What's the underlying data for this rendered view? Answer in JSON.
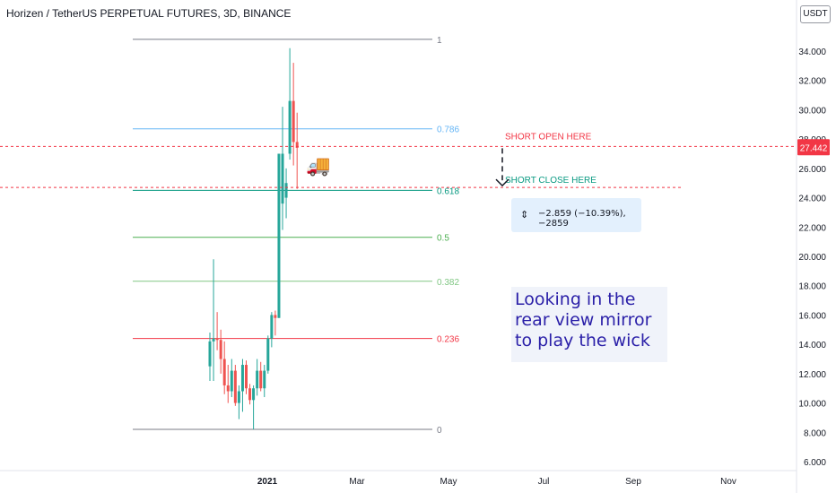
{
  "title": "Horizen / TetherUS PERPETUAL FUTURES, 3D, BINANCE",
  "currency_button": "USDT",
  "annotations": {
    "short_open": "SHORT OPEN HERE",
    "short_close": "SHORT CLOSE HERE",
    "measure": "−2.859 (−10.39%), −2859",
    "note_lines": [
      "Looking in the",
      "rear view mirror",
      "to play the wick"
    ],
    "truck_icon": "truck-icon"
  },
  "colors": {
    "up": "#26a69a",
    "down": "#ef5350",
    "note_text": "#2a1fa8",
    "price_badge": "#f23645"
  },
  "chart_data": {
    "type": "candlestick",
    "y_axis": {
      "min": 5.5,
      "max": 35.5,
      "ticks": [
        6,
        8,
        10,
        12,
        14,
        16,
        18,
        20,
        22,
        24,
        26,
        28,
        30,
        32,
        34
      ],
      "tick_labels": [
        "6.000",
        "8.000",
        "10.000",
        "12.000",
        "14.000",
        "16.000",
        "18.000",
        "20.000",
        "22.000",
        "24.000",
        "26.000",
        "28.000",
        "30.000",
        "32.000",
        "34.000"
      ]
    },
    "x_axis": {
      "labels": [
        "2021",
        "Mar",
        "May",
        "Jul",
        "Sep",
        "Nov"
      ]
    },
    "current_price": 27.442,
    "current_price_label": "27.442",
    "fib_levels": [
      {
        "label": "1",
        "price": 34.8,
        "color": "#787b86"
      },
      {
        "label": "0.786",
        "price": 28.7,
        "color": "#64b5f6"
      },
      {
        "label": "0.618",
        "price": 24.5,
        "color": "#089981"
      },
      {
        "label": "0.5",
        "price": 21.3,
        "color": "#4caf50"
      },
      {
        "label": "0.382",
        "price": 18.3,
        "color": "#81c784"
      },
      {
        "label": "0.236",
        "price": 14.4,
        "color": "#f23645"
      },
      {
        "label": "0",
        "price": 8.2,
        "color": "#787b86"
      }
    ],
    "short_open_price": 27.5,
    "short_close_price": 24.7,
    "candles": [
      {
        "o": 12.5,
        "h": 14.8,
        "l": 11.5,
        "c": 14.2
      },
      {
        "o": 14.2,
        "h": 19.8,
        "l": 11.5,
        "c": 14.4
      },
      {
        "o": 14.4,
        "h": 16.2,
        "l": 13.6,
        "c": 14.3
      },
      {
        "o": 14.3,
        "h": 15.0,
        "l": 12.0,
        "c": 13.0
      },
      {
        "o": 13.0,
        "h": 14.2,
        "l": 10.6,
        "c": 11.2
      },
      {
        "o": 11.2,
        "h": 12.6,
        "l": 10.0,
        "c": 10.8
      },
      {
        "o": 10.8,
        "h": 13.0,
        "l": 10.4,
        "c": 12.2
      },
      {
        "o": 12.2,
        "h": 12.6,
        "l": 9.8,
        "c": 10.0
      },
      {
        "o": 10.0,
        "h": 11.2,
        "l": 8.9,
        "c": 10.8
      },
      {
        "o": 10.8,
        "h": 13.0,
        "l": 9.4,
        "c": 12.6
      },
      {
        "o": 12.6,
        "h": 12.9,
        "l": 10.6,
        "c": 11.0
      },
      {
        "o": 11.0,
        "h": 11.3,
        "l": 9.9,
        "c": 10.2
      },
      {
        "o": 10.2,
        "h": 11.2,
        "l": 8.2,
        "c": 11.0
      },
      {
        "o": 11.0,
        "h": 13.0,
        "l": 10.5,
        "c": 12.2
      },
      {
        "o": 12.2,
        "h": 12.8,
        "l": 10.8,
        "c": 11.0
      },
      {
        "o": 11.0,
        "h": 12.6,
        "l": 10.4,
        "c": 12.2
      },
      {
        "o": 12.2,
        "h": 14.6,
        "l": 12.0,
        "c": 14.4
      },
      {
        "o": 14.4,
        "h": 16.2,
        "l": 13.8,
        "c": 16.0
      },
      {
        "o": 16.0,
        "h": 16.3,
        "l": 14.6,
        "c": 15.8
      },
      {
        "o": 15.8,
        "h": 27.0,
        "l": 15.8,
        "c": 27.0
      },
      {
        "o": 23.6,
        "h": 30.2,
        "l": 21.8,
        "c": 27.0
      },
      {
        "o": 24.0,
        "h": 26.0,
        "l": 22.6,
        "c": 25.0
      },
      {
        "o": 27.0,
        "h": 34.2,
        "l": 26.6,
        "c": 30.6
      },
      {
        "o": 30.6,
        "h": 33.2,
        "l": 26.2,
        "c": 27.8
      },
      {
        "o": 27.8,
        "h": 29.8,
        "l": 24.6,
        "c": 27.4
      }
    ]
  }
}
